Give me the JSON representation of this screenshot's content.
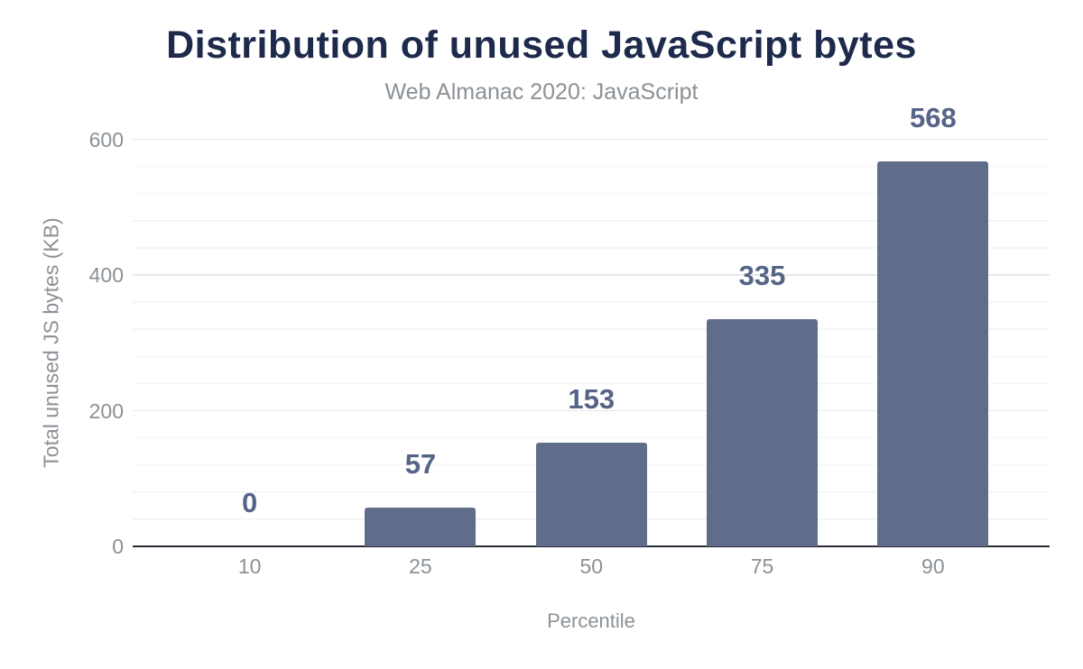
{
  "chart_data": {
    "type": "bar",
    "title": "Distribution of unused JavaScript bytes",
    "subtitle": "Web Almanac 2020: JavaScript",
    "categories": [
      "10",
      "25",
      "50",
      "75",
      "90"
    ],
    "values": [
      0,
      57,
      153,
      335,
      568
    ],
    "data_labels": [
      "0",
      "57",
      "153",
      "335",
      "568"
    ],
    "xlabel": "Percentile",
    "ylabel": "Total unused JS bytes (KB)",
    "yticks": [
      0,
      200,
      400,
      600
    ],
    "ylim": [
      0,
      600
    ],
    "grid": "horizontal only; minor lines every 40, major lines every 200",
    "legend_position": "none",
    "colors": {
      "bar": "#5f6d8b",
      "title": "#1d2a4b",
      "data_label": "#556487",
      "muted_text": "#8b9196",
      "axis_line": "#272b33",
      "grid_major": "#e8e8ea",
      "grid_minor": "#f5f5f6",
      "background": "#ffffff"
    }
  }
}
